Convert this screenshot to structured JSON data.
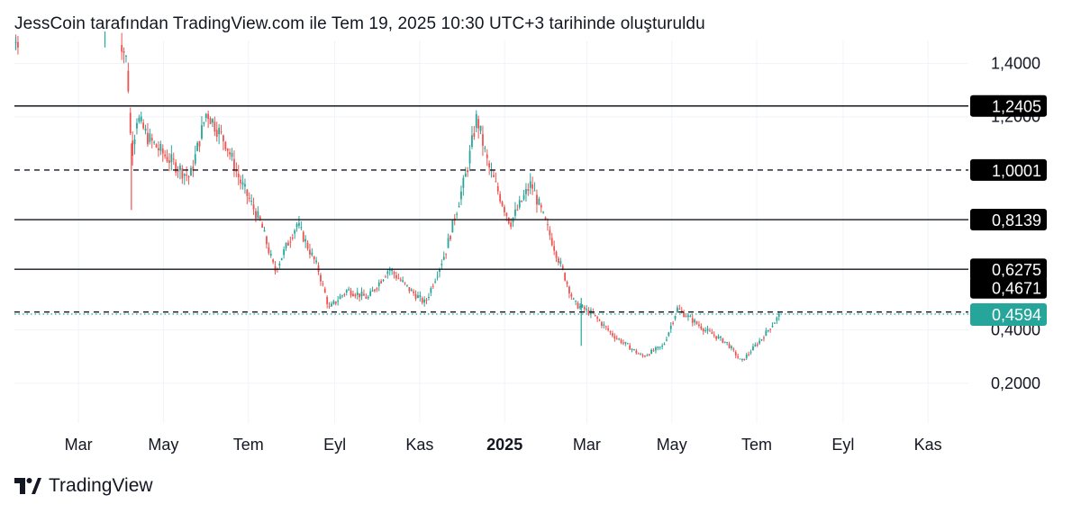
{
  "header": {
    "attribution": "JessCoin tarafından TradingView.com ile Tem 19, 2025 10:30 UTC+3 tarihinde oluşturuldu"
  },
  "footer": {
    "brand": "TradingView",
    "logo_icon": "tradingview-logo-icon"
  },
  "chart_data": {
    "type": "candlestick",
    "title": "",
    "x_tick_labels": [
      {
        "label": "Mar",
        "date": "2024-03-01",
        "bold": false
      },
      {
        "label": "May",
        "date": "2024-05-01",
        "bold": false
      },
      {
        "label": "Tem",
        "date": "2024-07-01",
        "bold": false
      },
      {
        "label": "Eyl",
        "date": "2024-09-01",
        "bold": false
      },
      {
        "label": "Kas",
        "date": "2024-11-01",
        "bold": false
      },
      {
        "label": "2025",
        "date": "2025-01-01",
        "bold": true
      },
      {
        "label": "Mar",
        "date": "2025-03-01",
        "bold": false
      },
      {
        "label": "May",
        "date": "2025-05-01",
        "bold": false
      },
      {
        "label": "Tem",
        "date": "2025-07-01",
        "bold": false
      },
      {
        "label": "Eyl",
        "date": "2025-09-01",
        "bold": false
      },
      {
        "label": "Kas",
        "date": "2025-11-01",
        "bold": false
      }
    ],
    "y_tick_labels": [
      {
        "label": "1,4000",
        "value": 1.4
      },
      {
        "label": "1,2000",
        "value": 1.2
      },
      {
        "label": "0,4000",
        "value": 0.4
      },
      {
        "label": "0,2000",
        "value": 0.2
      }
    ],
    "ylim": [
      0.0,
      1.52
    ],
    "xlim": [
      "2024-01-15",
      "2025-11-30"
    ],
    "grid": true,
    "colors": {
      "up": "#26a69a",
      "down": "#ef5350",
      "line": "#131722",
      "current_tag": "#26a69a",
      "level_tag": "#000000"
    },
    "horizontal_levels": [
      {
        "value": 1.2405,
        "label": "1,2405",
        "style": "solid"
      },
      {
        "value": 1.0001,
        "label": "1,0001",
        "style": "dashed"
      },
      {
        "value": 0.8139,
        "label": "0,8139",
        "style": "solid"
      },
      {
        "value": 0.6275,
        "label": "0,6275",
        "style": "solid"
      },
      {
        "value": 0.4671,
        "label": "0,4671",
        "style": "dashed"
      }
    ],
    "current_price": {
      "value": 0.4594,
      "label": "0,4594"
    },
    "price_path": [
      {
        "date": "2024-01-16",
        "close": 1.48
      },
      {
        "date": "2024-02-15",
        "close": 1.5
      },
      {
        "date": "2024-03-31",
        "close": 1.5
      },
      {
        "date": "2024-04-05",
        "close": 1.4
      },
      {
        "date": "2024-04-08",
        "close": 1.05
      },
      {
        "date": "2024-04-12",
        "close": 1.2
      },
      {
        "date": "2024-04-20",
        "close": 1.12
      },
      {
        "date": "2024-05-01",
        "close": 1.06
      },
      {
        "date": "2024-05-20",
        "close": 0.97
      },
      {
        "date": "2024-06-01",
        "close": 1.22
      },
      {
        "date": "2024-06-15",
        "close": 1.1
      },
      {
        "date": "2024-06-25",
        "close": 0.96
      },
      {
        "date": "2024-07-10",
        "close": 0.8
      },
      {
        "date": "2024-07-20",
        "close": 0.62
      },
      {
        "date": "2024-08-05",
        "close": 0.8
      },
      {
        "date": "2024-08-20",
        "close": 0.63
      },
      {
        "date": "2024-08-28",
        "close": 0.48
      },
      {
        "date": "2024-09-10",
        "close": 0.55
      },
      {
        "date": "2024-09-25",
        "close": 0.52
      },
      {
        "date": "2024-10-10",
        "close": 0.63
      },
      {
        "date": "2024-10-25",
        "close": 0.55
      },
      {
        "date": "2024-11-05",
        "close": 0.5
      },
      {
        "date": "2024-11-20",
        "close": 0.7
      },
      {
        "date": "2024-12-05",
        "close": 1.0
      },
      {
        "date": "2024-12-12",
        "close": 1.2
      },
      {
        "date": "2024-12-20",
        "close": 1.02
      },
      {
        "date": "2025-01-05",
        "close": 0.8
      },
      {
        "date": "2025-01-20",
        "close": 0.95
      },
      {
        "date": "2025-02-05",
        "close": 0.72
      },
      {
        "date": "2025-02-20",
        "close": 0.5
      },
      {
        "date": "2025-03-05",
        "close": 0.46
      },
      {
        "date": "2025-03-20",
        "close": 0.38
      },
      {
        "date": "2025-04-10",
        "close": 0.3
      },
      {
        "date": "2025-04-25",
        "close": 0.34
      },
      {
        "date": "2025-05-05",
        "close": 0.48
      },
      {
        "date": "2025-05-25",
        "close": 0.4
      },
      {
        "date": "2025-06-10",
        "close": 0.35
      },
      {
        "date": "2025-06-20",
        "close": 0.28
      },
      {
        "date": "2025-07-05",
        "close": 0.37
      },
      {
        "date": "2025-07-18",
        "close": 0.46
      }
    ]
  }
}
